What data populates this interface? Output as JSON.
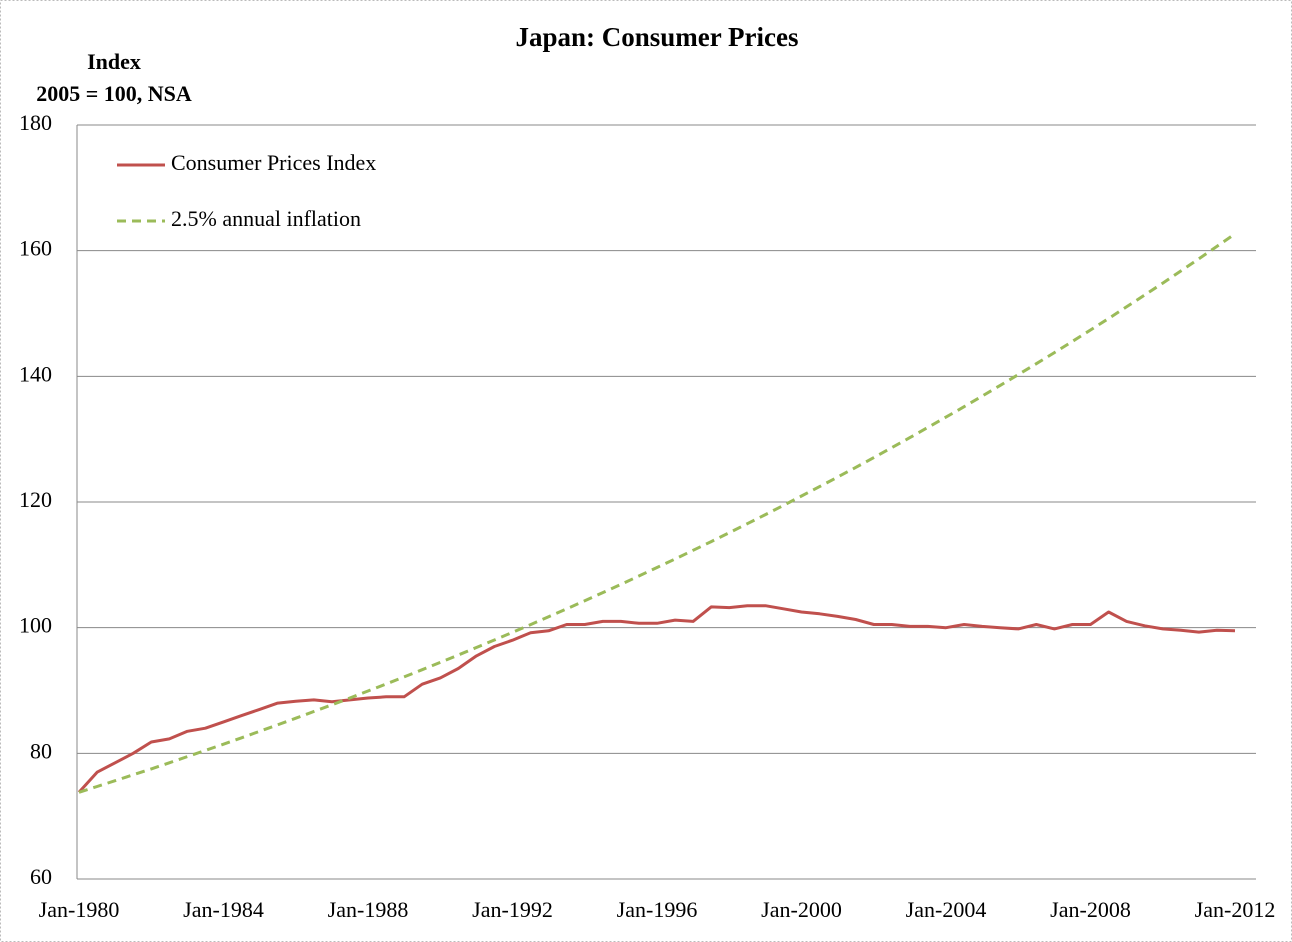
{
  "chart_data": {
    "type": "line",
    "title": "Japan: Consumer Prices",
    "y_axis_label": [
      "Index",
      "2005 = 100, NSA"
    ],
    "categories": [
      "Jan-1980",
      null,
      null,
      null,
      null,
      null,
      null,
      null,
      "Jan-1984",
      null,
      null,
      null,
      null,
      null,
      null,
      null,
      "Jan-1988",
      null,
      null,
      null,
      null,
      null,
      null,
      null,
      "Jan-1992",
      null,
      null,
      null,
      null,
      null,
      null,
      null,
      "Jan-1996",
      null,
      null,
      null,
      null,
      null,
      null,
      null,
      "Jan-2000",
      null,
      null,
      null,
      null,
      null,
      null,
      null,
      "Jan-2004",
      null,
      null,
      null,
      null,
      null,
      null,
      null,
      "Jan-2008",
      null,
      null,
      null,
      null,
      null,
      null,
      null,
      "Jan-2012"
    ],
    "series": [
      {
        "name": "Consumer Prices Index",
        "color": "#c0504d",
        "dash": false,
        "values": [
          73.8,
          77,
          78.5,
          80,
          81.8,
          82.3,
          83.5,
          84,
          85,
          86,
          87,
          88,
          88.3,
          88.5,
          88.2,
          88.5,
          88.8,
          89,
          89,
          91,
          92,
          93.5,
          95.5,
          97,
          98,
          99.2,
          99.5,
          100.5,
          100.5,
          101,
          101,
          100.7,
          100.7,
          101.2,
          101,
          103.3,
          103.2,
          103.5,
          103.5,
          103,
          102.5,
          102.2,
          101.8,
          101.3,
          100.5,
          100.5,
          100.2,
          100.2,
          100,
          100.5,
          100.2,
          100,
          99.8,
          100.5,
          99.8,
          100.5,
          100.5,
          102.5,
          101,
          100.3,
          99.8,
          99.6,
          99.3,
          99.6,
          99.5
        ]
      },
      {
        "name": "2.5% annual inflation",
        "color": "#9bbb59",
        "dash": true,
        "values": [
          73.8,
          74.72,
          75.65,
          76.59,
          77.53,
          78.5,
          79.48,
          80.46,
          81.46,
          82.47,
          83.5,
          84.54,
          85.59,
          86.65,
          87.72,
          88.81,
          89.92,
          91.04,
          92.17,
          93.31,
          94.47,
          95.65,
          96.84,
          98.04,
          99.26,
          100.49,
          101.74,
          103,
          104.28,
          105.58,
          106.89,
          108.22,
          109.57,
          110.93,
          112.31,
          113.7,
          115.12,
          116.55,
          118,
          119.46,
          120.95,
          122.45,
          123.97,
          125.51,
          127.07,
          128.65,
          130.25,
          131.87,
          133.51,
          135.17,
          136.85,
          138.55,
          140.27,
          142.01,
          143.78,
          145.56,
          147.37,
          149.21,
          151.06,
          152.94,
          154.84,
          156.76,
          158.71,
          160.68,
          162.68
        ]
      }
    ],
    "ylim": [
      60,
      180
    ],
    "yticks": [
      60,
      80,
      100,
      120,
      140,
      160,
      180
    ],
    "grid": true,
    "legend": "top-left"
  }
}
